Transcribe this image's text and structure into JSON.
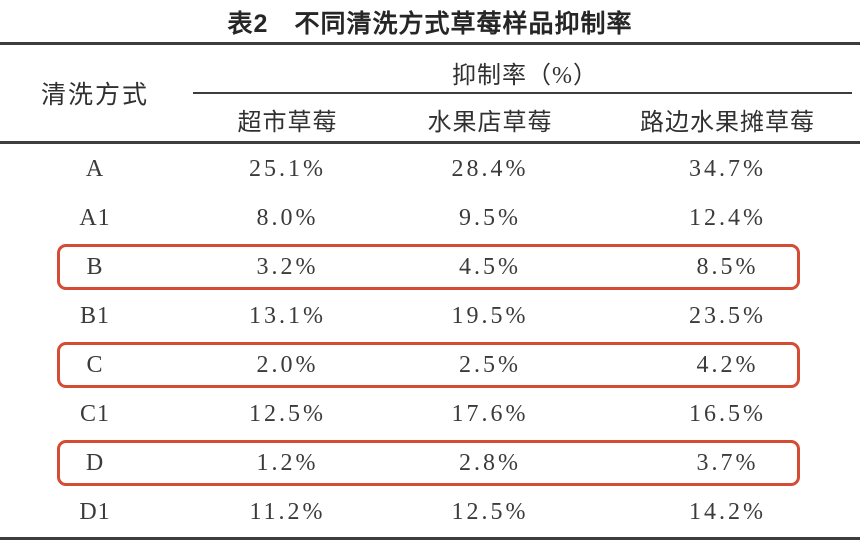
{
  "table": {
    "title": "表2　不同清洗方式草莓样品抑制率",
    "method_header": "清洗方式",
    "span_header": "抑制率（%）",
    "sub_headers": [
      "超市草莓",
      "水果店草莓",
      "路边水果摊草莓"
    ],
    "rows": [
      {
        "method": "A",
        "values": [
          "25.1%",
          "28.4%",
          "34.7%"
        ],
        "highlighted": false
      },
      {
        "method": "A1",
        "values": [
          "8.0%",
          "9.5%",
          "12.4%"
        ],
        "highlighted": false
      },
      {
        "method": "B",
        "values": [
          "3.2%",
          "4.5%",
          "8.5%"
        ],
        "highlighted": true
      },
      {
        "method": "B1",
        "values": [
          "13.1%",
          "19.5%",
          "23.5%"
        ],
        "highlighted": false
      },
      {
        "method": "C",
        "values": [
          "2.0%",
          "2.5%",
          "4.2%"
        ],
        "highlighted": true
      },
      {
        "method": "C1",
        "values": [
          "12.5%",
          "17.6%",
          "16.5%"
        ],
        "highlighted": false
      },
      {
        "method": "D",
        "values": [
          "1.2%",
          "2.8%",
          "3.7%"
        ],
        "highlighted": true
      },
      {
        "method": "D1",
        "values": [
          "11.2%",
          "12.5%",
          "14.2%"
        ],
        "highlighted": false
      }
    ],
    "highlight_color": "#d64b33",
    "rule_color": "#3d3d3d"
  }
}
